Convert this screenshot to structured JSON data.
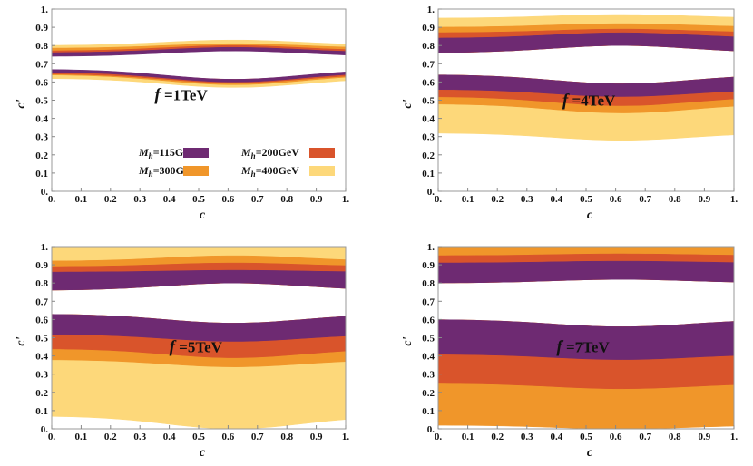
{
  "chart_data": {
    "type": "region",
    "xlabel": "c",
    "ylabel": "c'",
    "xlim": [
      0,
      1
    ],
    "ylim": [
      0,
      1
    ],
    "xticks": [
      "0.",
      "0.1",
      "0.2",
      "0.3",
      "0.4",
      "0.5",
      "0.6",
      "0.7",
      "0.8",
      "0.9",
      "1."
    ],
    "yticks": [
      "0.",
      "0.1",
      "0.2",
      "0.3",
      "0.4",
      "0.5",
      "0.6",
      "0.7",
      "0.8",
      "0.9",
      "1."
    ],
    "legend": {
      "location": "inside panel 1, lower",
      "symbol": "M",
      "subscript": "h",
      "entries": [
        {
          "key": "mh115",
          "label": "=115GeV",
          "color": "#6e2a72"
        },
        {
          "key": "mh200",
          "label": "=200GeV",
          "color": "#d9542b"
        },
        {
          "key": "mh300",
          "label": "=300GeV",
          "color": "#f0962a"
        },
        {
          "key": "mh400",
          "label": "=400GeV",
          "color": "#fdd87a"
        }
      ]
    },
    "panels": [
      {
        "f_symbol": "f",
        "f_value": " =1TeV",
        "upper_band": [
          {
            "key": "mh400",
            "lo_ends": 0.78,
            "lo_mid": 0.81,
            "hi_ends": 0.8,
            "hi_mid": 0.83
          },
          {
            "key": "mh300",
            "lo_ends": 0.765,
            "lo_mid": 0.795,
            "hi_ends": 0.785,
            "hi_mid": 0.81
          },
          {
            "key": "mh200",
            "lo_ends": 0.755,
            "lo_mid": 0.785,
            "hi_ends": 0.77,
            "hi_mid": 0.8
          },
          {
            "key": "mh115",
            "lo_ends": 0.74,
            "lo_mid": 0.77,
            "hi_ends": 0.76,
            "hi_mid": 0.79
          }
        ],
        "lower_band": [
          {
            "key": "mh400",
            "lo_ends": 0.62,
            "lo_mid": 0.57,
            "hi_ends": 0.66,
            "hi_mid": 0.61
          },
          {
            "key": "mh300",
            "lo_ends": 0.64,
            "lo_mid": 0.585,
            "hi_ends": 0.66,
            "hi_mid": 0.61
          },
          {
            "key": "mh200",
            "lo_ends": 0.645,
            "lo_mid": 0.595,
            "hi_ends": 0.665,
            "hi_mid": 0.615
          },
          {
            "key": "mh115",
            "lo_ends": 0.655,
            "lo_mid": 0.6,
            "hi_ends": 0.67,
            "hi_mid": 0.615
          }
        ]
      },
      {
        "f_symbol": "f",
        "f_value": " =4TeV",
        "upper_band": [
          {
            "key": "mh400",
            "lo_ends": 0.76,
            "lo_mid": 0.8,
            "hi_ends": 0.95,
            "hi_mid": 0.97
          },
          {
            "key": "mh300",
            "lo_ends": 0.76,
            "lo_mid": 0.8,
            "hi_ends": 0.9,
            "hi_mid": 0.92
          },
          {
            "key": "mh200",
            "lo_ends": 0.76,
            "lo_mid": 0.8,
            "hi_ends": 0.87,
            "hi_mid": 0.89
          },
          {
            "key": "mh115",
            "lo_ends": 0.76,
            "lo_mid": 0.8,
            "hi_ends": 0.84,
            "hi_mid": 0.87
          }
        ],
        "lower_band": [
          {
            "key": "mh400",
            "lo_ends": 0.32,
            "lo_mid": 0.28,
            "hi_ends": 0.64,
            "hi_mid": 0.59
          },
          {
            "key": "mh300",
            "lo_ends": 0.48,
            "lo_mid": 0.43,
            "hi_ends": 0.64,
            "hi_mid": 0.59
          },
          {
            "key": "mh200",
            "lo_ends": 0.52,
            "lo_mid": 0.47,
            "hi_ends": 0.64,
            "hi_mid": 0.59
          },
          {
            "key": "mh115",
            "lo_ends": 0.56,
            "lo_mid": 0.52,
            "hi_ends": 0.64,
            "hi_mid": 0.59
          }
        ]
      },
      {
        "f_symbol": "f",
        "f_value": " =5TeV",
        "upper_band": [
          {
            "key": "mh400",
            "lo_ends": 0.76,
            "lo_mid": 0.8,
            "hi_ends": 1.0,
            "hi_mid": 1.0
          },
          {
            "key": "mh300",
            "lo_ends": 0.76,
            "lo_mid": 0.8,
            "hi_ends": 0.92,
            "hi_mid": 0.95
          },
          {
            "key": "mh200",
            "lo_ends": 0.76,
            "lo_mid": 0.8,
            "hi_ends": 0.89,
            "hi_mid": 0.91
          },
          {
            "key": "mh115",
            "lo_ends": 0.76,
            "lo_mid": 0.8,
            "hi_ends": 0.86,
            "hi_mid": 0.87
          }
        ],
        "lower_band": [
          {
            "key": "mh400",
            "lo_ends": 0.07,
            "lo_mid": 0.0,
            "hi_ends": 0.63,
            "hi_mid": 0.58
          },
          {
            "key": "mh300",
            "lo_ends": 0.38,
            "lo_mid": 0.34,
            "hi_ends": 0.63,
            "hi_mid": 0.58
          },
          {
            "key": "mh200",
            "lo_ends": 0.44,
            "lo_mid": 0.39,
            "hi_ends": 0.63,
            "hi_mid": 0.58
          },
          {
            "key": "mh115",
            "lo_ends": 0.52,
            "lo_mid": 0.48,
            "hi_ends": 0.63,
            "hi_mid": 0.58
          }
        ]
      },
      {
        "f_symbol": "f",
        "f_value": " =7TeV",
        "upper_band": [
          {
            "key": "mh300",
            "lo_ends": 0.8,
            "lo_mid": 0.82,
            "hi_ends": 1.0,
            "hi_mid": 1.0
          },
          {
            "key": "mh200",
            "lo_ends": 0.8,
            "lo_mid": 0.82,
            "hi_ends": 0.95,
            "hi_mid": 0.96
          },
          {
            "key": "mh115",
            "lo_ends": 0.8,
            "lo_mid": 0.82,
            "hi_ends": 0.91,
            "hi_mid": 0.92
          }
        ],
        "lower_band": [
          {
            "key": "mh300",
            "lo_ends": 0.02,
            "lo_mid": 0.0,
            "hi_ends": 0.6,
            "hi_mid": 0.56
          },
          {
            "key": "mh200",
            "lo_ends": 0.25,
            "lo_mid": 0.22,
            "hi_ends": 0.6,
            "hi_mid": 0.56
          },
          {
            "key": "mh115",
            "lo_ends": 0.41,
            "lo_mid": 0.38,
            "hi_ends": 0.6,
            "hi_mid": 0.56
          }
        ]
      }
    ]
  }
}
